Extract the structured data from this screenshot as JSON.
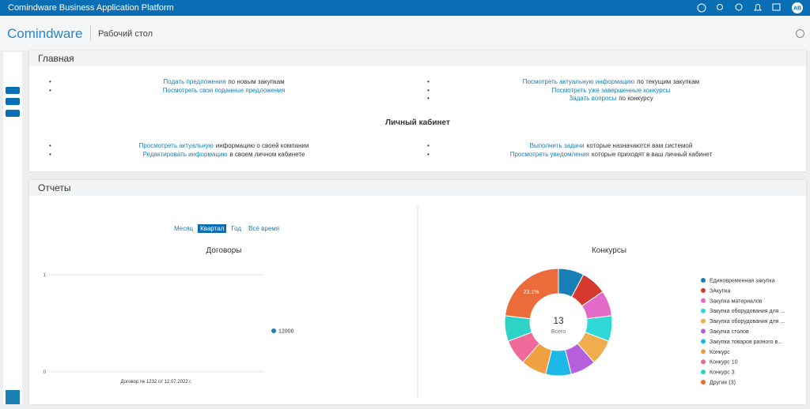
{
  "topbar": {
    "title": "Comindware Business Application Platform",
    "avatar": "AB"
  },
  "header": {
    "logo": "Comindware",
    "page": "Рабочий стол"
  },
  "main": {
    "title": "Главная",
    "left": [
      {
        "link": "Подать предложения",
        "rest": "по новым закупкам"
      },
      {
        "link": "Посмотреть свои поданные предложения"
      }
    ],
    "right": [
      {
        "link": "Посмотреть актуальную информацию",
        "rest": "по текущим закупкам"
      },
      {
        "link": "Посмотреть уже завершенные конкурсы"
      },
      {
        "link": "Задать вопросы",
        "rest": "по конкурсу"
      }
    ],
    "cabinet_title": "Личный кабинет",
    "cabinet_left": [
      {
        "link": "Просмотреть актуальную",
        "rest": "информацию о своей компании"
      },
      {
        "link": "Редактировать информацию",
        "rest": "в своем личном кабинете"
      }
    ],
    "cabinet_right": [
      {
        "link": "Выполнить задачи",
        "rest": "которые назначаются вам системой"
      },
      {
        "link": "Просмотреть уведомления",
        "rest": "которые приходят в ваш личный кабинет"
      }
    ]
  },
  "reports": {
    "title": "Отчеты",
    "periods": [
      "Месяц",
      "Квартал",
      "Год",
      "Всё время"
    ],
    "active_period": 1
  },
  "chart_data": [
    {
      "type": "bar",
      "title": "Договоры",
      "categories": [
        "Договор № 1232 от 12.07.2022 г."
      ],
      "series": [
        {
          "name": "12000",
          "color": "#1a7fb5",
          "values": [
            0
          ]
        }
      ],
      "ylim": [
        0,
        1
      ],
      "yticks": [
        0,
        1
      ],
      "grid": true,
      "legend": "right"
    },
    {
      "type": "pie",
      "title": "Конкурсы",
      "total": 13,
      "total_label": "Всего",
      "legend": "right",
      "categories": [
        "Единовременная закупка",
        "ЗАкупка",
        "Закупка материалов",
        "Закупка оборудования для ...",
        "Закупка оборудования для ...",
        "Закупка столов",
        "Закупка товаров разного в...",
        "Конкурс",
        "Конкурс 10",
        "Конкурс 3",
        "Другие (3)"
      ],
      "colors": [
        "#1a7fb5",
        "#d63a2f",
        "#e36ac9",
        "#2ed8d8",
        "#f0ad4e",
        "#b65fdc",
        "#1eb8e6",
        "#f0a040",
        "#ef6a9a",
        "#2ed3c8",
        "#ec6b3a"
      ],
      "values": [
        7.7,
        7.7,
        7.7,
        7.7,
        7.7,
        7.7,
        7.7,
        7.7,
        7.7,
        7.7,
        23.1
      ],
      "value_labels": [
        null,
        null,
        null,
        null,
        null,
        null,
        null,
        null,
        null,
        null,
        "23.1%"
      ]
    }
  ]
}
